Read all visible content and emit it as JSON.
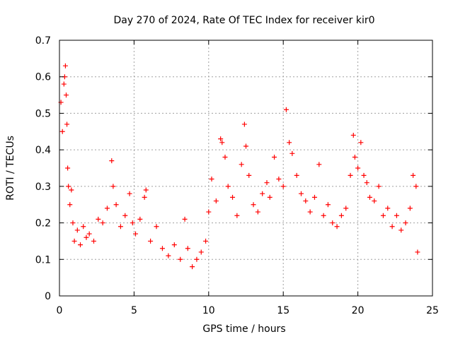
{
  "chart_data": {
    "type": "scatter",
    "title": "Day 270 of 2024, Rate Of TEC Index for receiver kir0",
    "xlabel": "GPS time / hours",
    "ylabel": "ROTI / TECUs",
    "xlim": [
      0,
      25
    ],
    "ylim": [
      0,
      0.7
    ],
    "xticks": [
      "0",
      "5",
      "10",
      "15",
      "20",
      "25"
    ],
    "xtick_values": [
      0,
      5,
      10,
      15,
      20,
      25
    ],
    "yticks": [
      "0",
      "0.1",
      "0.2",
      "0.3",
      "0.4",
      "0.5",
      "0.6",
      "0.7"
    ],
    "ytick_values": [
      0,
      0.1,
      0.2,
      0.3,
      0.4,
      0.5,
      0.6,
      0.7
    ],
    "grid": true,
    "marker": "+",
    "color": "#ff0000",
    "series": [
      {
        "name": "ROTI",
        "x": [
          0.1,
          0.2,
          0.3,
          0.35,
          0.4,
          0.45,
          0.5,
          0.55,
          0.6,
          0.7,
          0.8,
          0.9,
          1.0,
          1.2,
          1.4,
          1.6,
          1.8,
          2.0,
          2.3,
          2.6,
          2.9,
          3.2,
          3.5,
          3.6,
          3.8,
          4.1,
          4.4,
          4.7,
          4.9,
          5.1,
          5.4,
          5.7,
          5.8,
          6.1,
          6.5,
          6.9,
          7.3,
          7.7,
          8.1,
          8.4,
          8.6,
          8.9,
          9.2,
          9.5,
          9.8,
          10.0,
          10.2,
          10.5,
          10.8,
          10.9,
          11.1,
          11.3,
          11.6,
          11.9,
          12.2,
          12.4,
          12.5,
          12.7,
          13.0,
          13.3,
          13.6,
          13.9,
          14.1,
          14.4,
          14.7,
          15.0,
          15.2,
          15.4,
          15.6,
          15.9,
          16.2,
          16.5,
          16.8,
          17.1,
          17.4,
          17.7,
          18.0,
          18.3,
          18.6,
          18.9,
          19.2,
          19.5,
          19.7,
          19.8,
          20.0,
          20.2,
          20.4,
          20.6,
          20.8,
          21.1,
          21.4,
          21.7,
          22.0,
          22.3,
          22.6,
          22.9,
          23.2,
          23.5,
          23.7,
          23.9,
          24.0
        ],
        "y": [
          0.53,
          0.45,
          0.58,
          0.6,
          0.63,
          0.55,
          0.47,
          0.35,
          0.3,
          0.25,
          0.29,
          0.2,
          0.15,
          0.18,
          0.14,
          0.19,
          0.16,
          0.17,
          0.15,
          0.21,
          0.2,
          0.24,
          0.37,
          0.3,
          0.25,
          0.19,
          0.22,
          0.28,
          0.2,
          0.17,
          0.21,
          0.27,
          0.29,
          0.15,
          0.19,
          0.13,
          0.11,
          0.14,
          0.1,
          0.21,
          0.13,
          0.08,
          0.1,
          0.12,
          0.15,
          0.23,
          0.32,
          0.26,
          0.43,
          0.42,
          0.38,
          0.3,
          0.27,
          0.22,
          0.36,
          0.47,
          0.41,
          0.33,
          0.25,
          0.23,
          0.28,
          0.31,
          0.27,
          0.38,
          0.32,
          0.3,
          0.51,
          0.42,
          0.39,
          0.33,
          0.28,
          0.26,
          0.23,
          0.27,
          0.36,
          0.22,
          0.25,
          0.2,
          0.19,
          0.22,
          0.24,
          0.33,
          0.44,
          0.38,
          0.35,
          0.42,
          0.33,
          0.31,
          0.27,
          0.26,
          0.3,
          0.22,
          0.24,
          0.19,
          0.22,
          0.18,
          0.2,
          0.24,
          0.33,
          0.3,
          0.12
        ]
      }
    ]
  }
}
